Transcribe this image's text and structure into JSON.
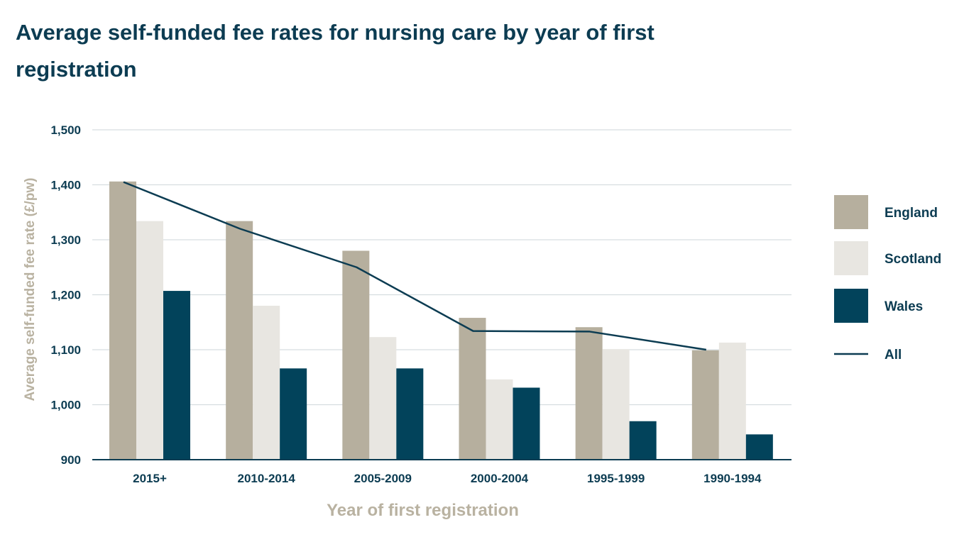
{
  "title": "Average self-funded fee rates for nursing care by year of first registration",
  "chart_data": {
    "type": "bar",
    "title": "Average self-funded fee rates for nursing care by year of first registration",
    "xlabel": "Year of first registration",
    "ylabel": "Average self-funded fee rate (£/pw)",
    "ylim": [
      900,
      1500
    ],
    "yticks": [
      900,
      1000,
      1100,
      1200,
      1300,
      1400,
      1500
    ],
    "ytick_labels": [
      "900",
      "1,000",
      "1,100",
      "1,200",
      "1,300",
      "1,400",
      "1,500"
    ],
    "grid": true,
    "legend_position": "right",
    "categories": [
      "2015+",
      "2010-2014",
      "2005-2009",
      "2000-2004",
      "1995-1999",
      "1990-1994"
    ],
    "series": [
      {
        "name": "England",
        "kind": "bar",
        "color": "#b6af9e",
        "values": [
          1406,
          1334,
          1280,
          1158,
          1141,
          1099
        ]
      },
      {
        "name": "Scotland",
        "kind": "bar",
        "color": "#e8e6e1",
        "values": [
          1334,
          1180,
          1123,
          1046,
          1101,
          1113
        ]
      },
      {
        "name": "Wales",
        "kind": "bar",
        "color": "#02435b",
        "values": [
          1207,
          1066,
          1066,
          1031,
          970,
          946
        ]
      },
      {
        "name": "All",
        "kind": "line",
        "color": "#0c3c52",
        "values": [
          1405,
          1320,
          1250,
          1134,
          1133,
          1100
        ]
      }
    ]
  }
}
